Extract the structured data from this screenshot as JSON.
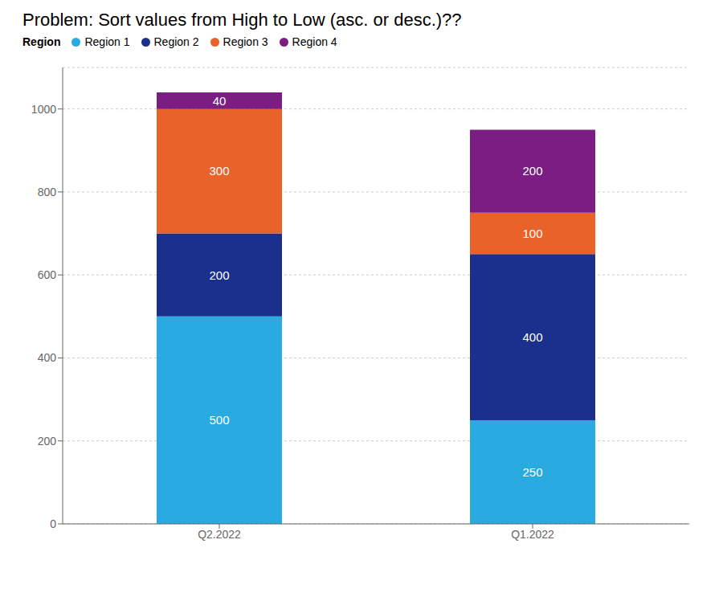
{
  "chart_data": {
    "type": "bar",
    "title": "Problem: Sort values from High to Low (asc. or desc.)??",
    "legend_title": "Region",
    "categories": [
      "Q2.2022",
      "Q1.2022"
    ],
    "series": [
      {
        "name": "Region 1",
        "color": "#29ABE2",
        "values": [
          500,
          250
        ]
      },
      {
        "name": "Region 2",
        "color": "#1B2F8C",
        "values": [
          200,
          400
        ]
      },
      {
        "name": "Region 3",
        "color": "#E8622A",
        "values": [
          300,
          100
        ]
      },
      {
        "name": "Region 4",
        "color": "#7B1D82",
        "values": [
          40,
          200
        ]
      }
    ],
    "stacked": true,
    "data_labels": true,
    "ylim": [
      0,
      1100
    ],
    "yticks": [
      0,
      200,
      400,
      600,
      800,
      1000
    ],
    "grid": true,
    "legend": "top"
  }
}
